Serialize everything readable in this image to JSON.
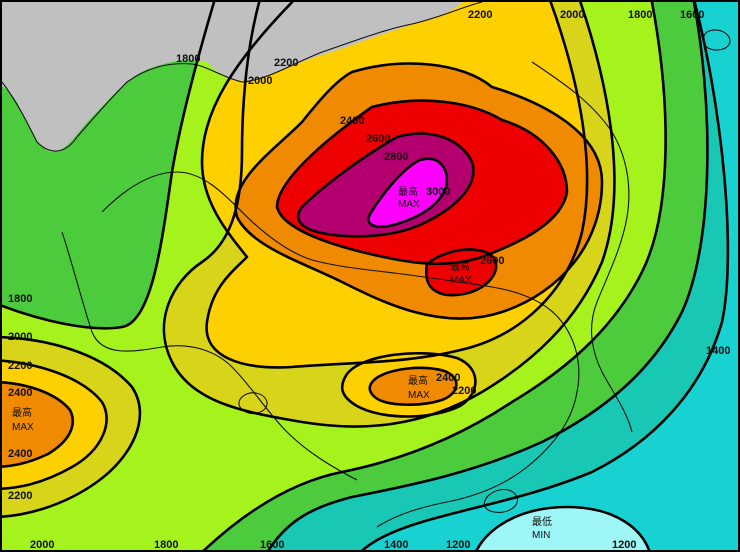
{
  "colors": {
    "le_1200": "#9ff6f6",
    "c1200_1400": "#18d2d2",
    "c1400_1600": "#18c8b4",
    "c1600_1800": "#4ccc3c",
    "c1800_2000": "#a6f21c",
    "c2000_2200": "#d8d41a",
    "c2200_2400": "#ffd000",
    "c2400_2600": "#f08a00",
    "c2600_2800": "#ee0000",
    "c2800_3000": "#b4006e",
    "ge_3000": "#ff00ff",
    "land_gray": "#c0c0c0",
    "contour_line": "#000000"
  },
  "contour_labels": [
    {
      "id": "1800-west-top",
      "text": "1800"
    },
    {
      "id": "2000-west-top",
      "text": "2000"
    },
    {
      "id": "2200-mid-top",
      "text": "2200"
    },
    {
      "id": "2200-top",
      "text": "2200"
    },
    {
      "id": "2000-top",
      "text": "2000"
    },
    {
      "id": "1800-top",
      "text": "1800"
    },
    {
      "id": "1600-top",
      "text": "1600"
    },
    {
      "id": "2400-n",
      "text": "2400"
    },
    {
      "id": "2600-n",
      "text": "2600"
    },
    {
      "id": "2800-n",
      "text": "2800"
    },
    {
      "id": "3000-c",
      "text": "3000"
    },
    {
      "id": "2600-se",
      "text": "2600"
    },
    {
      "id": "1800-w",
      "text": "1800"
    },
    {
      "id": "2000-w",
      "text": "2000"
    },
    {
      "id": "2200-w",
      "text": "2200"
    },
    {
      "id": "2400-w",
      "text": "2400"
    },
    {
      "id": "2400-w2",
      "text": "2400"
    },
    {
      "id": "2200-w2",
      "text": "2200"
    },
    {
      "id": "2400-s",
      "text": "2400"
    },
    {
      "id": "2200-s",
      "text": "2200"
    },
    {
      "id": "1400-e",
      "text": "1400"
    },
    {
      "id": "2000-bottom",
      "text": "2000"
    },
    {
      "id": "1800-bottom",
      "text": "1800"
    },
    {
      "id": "1600-bottom",
      "text": "1600"
    },
    {
      "id": "1400-bottom",
      "text": "1400"
    },
    {
      "id": "1200-bottom-l",
      "text": "1200"
    },
    {
      "id": "1200-bottom-r",
      "text": "1200"
    }
  ],
  "extrema": [
    {
      "id": "max-center",
      "cn": "最高",
      "en": "MAX"
    },
    {
      "id": "max-southeast",
      "cn": "最高",
      "en": "MAX"
    },
    {
      "id": "max-south",
      "cn": "最高",
      "en": "MAX"
    },
    {
      "id": "max-west",
      "cn": "最高",
      "en": "MAX"
    },
    {
      "id": "min-south",
      "cn": "最低",
      "en": "MIN"
    }
  ]
}
